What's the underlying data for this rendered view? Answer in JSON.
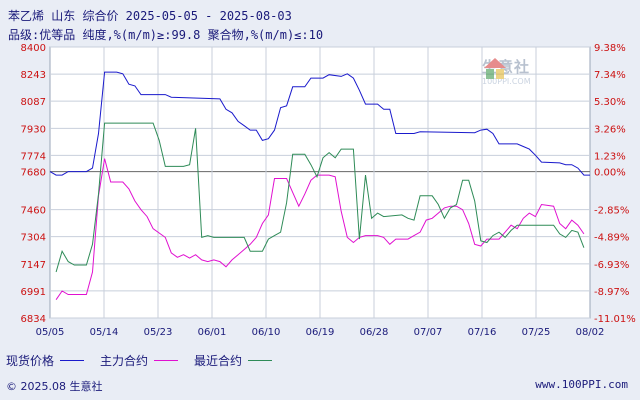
{
  "header": {
    "title": "苯乙烯 山东 综合价 2025-05-05 - 2025-08-03",
    "subtitle": "品级:优等品 纯度,%(m/m)≥:99.8 聚合物,%(m/m)≤:10"
  },
  "watermark": {
    "brand": "生意社",
    "url": "100PPI.COM",
    "colors": [
      "#2f8f3f",
      "#d33030",
      "#e0b020"
    ]
  },
  "legend": {
    "spot": "现货价格",
    "main": "主力合约",
    "nearest": "最近合约"
  },
  "footer": {
    "copyright": "© 2025.08 生意社",
    "site": "www.100PPI.com"
  },
  "colors": {
    "spot": "#1a1acc",
    "main": "#e010d0",
    "nearest": "#2e8b57",
    "zero_line": "#666666"
  },
  "chart_data": {
    "type": "line",
    "ylim": [
      6834,
      8400
    ],
    "left_ticks": [
      "8400",
      "8243",
      "8087",
      "7930",
      "7774",
      "7680",
      "7460",
      "7304",
      "7147",
      "6991",
      "6834"
    ],
    "right_ticks": [
      "9.38%",
      "7.34%",
      "5.30%",
      "3.26%",
      "1.23%",
      "0.00%",
      "-2.85%",
      "-4.89%",
      "-6.93%",
      "-8.97%",
      "-11.01%"
    ],
    "right_tick_values": [
      8400,
      8243,
      8087,
      7930,
      7774,
      7680,
      7460,
      7304,
      7147,
      6991,
      6834
    ],
    "reference_value": 7680,
    "x_tick_labels": [
      "05/05",
      "05/14",
      "05/23",
      "06/01",
      "06/10",
      "06/19",
      "06/28",
      "07/07",
      "07/16",
      "07/25",
      "08/02"
    ],
    "x_days": 89,
    "series": [
      {
        "name": "现货价格",
        "key": "spot",
        "points": [
          [
            0,
            7680
          ],
          [
            1,
            7660
          ],
          [
            2,
            7660
          ],
          [
            3,
            7680
          ],
          [
            6,
            7680
          ],
          [
            7,
            7700
          ],
          [
            8,
            7900
          ],
          [
            9,
            8255
          ],
          [
            11,
            8255
          ],
          [
            12,
            8245
          ],
          [
            13,
            8185
          ],
          [
            14,
            8175
          ],
          [
            15,
            8125
          ],
          [
            19,
            8125
          ],
          [
            20,
            8110
          ],
          [
            28,
            8100
          ],
          [
            29,
            8040
          ],
          [
            30,
            8020
          ],
          [
            31,
            7970
          ],
          [
            32,
            7945
          ],
          [
            33,
            7920
          ],
          [
            34,
            7920
          ],
          [
            35,
            7860
          ],
          [
            36,
            7870
          ],
          [
            37,
            7920
          ],
          [
            38,
            8050
          ],
          [
            39,
            8060
          ],
          [
            40,
            8170
          ],
          [
            42,
            8170
          ],
          [
            43,
            8220
          ],
          [
            45,
            8220
          ],
          [
            46,
            8240
          ],
          [
            48,
            8230
          ],
          [
            49,
            8245
          ],
          [
            50,
            8220
          ],
          [
            51,
            8150
          ],
          [
            52,
            8070
          ],
          [
            54,
            8070
          ],
          [
            55,
            8040
          ],
          [
            56,
            8040
          ],
          [
            57,
            7900
          ],
          [
            60,
            7900
          ],
          [
            61,
            7910
          ],
          [
            70,
            7905
          ],
          [
            71,
            7920
          ],
          [
            72,
            7925
          ],
          [
            73,
            7900
          ],
          [
            74,
            7840
          ],
          [
            77,
            7840
          ],
          [
            78,
            7825
          ],
          [
            79,
            7810
          ],
          [
            80,
            7775
          ],
          [
            81,
            7735
          ],
          [
            84,
            7730
          ],
          [
            85,
            7720
          ],
          [
            86,
            7720
          ],
          [
            87,
            7700
          ],
          [
            88,
            7660
          ],
          [
            89,
            7660
          ]
        ]
      },
      {
        "name": "主力合约",
        "key": "main",
        "points": [
          [
            1,
            6940
          ],
          [
            2,
            6990
          ],
          [
            3,
            6970
          ],
          [
            6,
            6970
          ],
          [
            7,
            7100
          ],
          [
            8,
            7540
          ],
          [
            9,
            7755
          ],
          [
            10,
            7620
          ],
          [
            12,
            7620
          ],
          [
            13,
            7580
          ],
          [
            14,
            7510
          ],
          [
            15,
            7460
          ],
          [
            16,
            7420
          ],
          [
            17,
            7350
          ],
          [
            19,
            7300
          ],
          [
            20,
            7210
          ],
          [
            21,
            7185
          ],
          [
            22,
            7200
          ],
          [
            23,
            7180
          ],
          [
            24,
            7200
          ],
          [
            25,
            7170
          ],
          [
            26,
            7160
          ],
          [
            27,
            7170
          ],
          [
            28,
            7160
          ],
          [
            29,
            7130
          ],
          [
            30,
            7170
          ],
          [
            31,
            7200
          ],
          [
            32,
            7230
          ],
          [
            33,
            7260
          ],
          [
            34,
            7300
          ],
          [
            35,
            7380
          ],
          [
            36,
            7430
          ],
          [
            37,
            7640
          ],
          [
            39,
            7640
          ],
          [
            40,
            7560
          ],
          [
            41,
            7480
          ],
          [
            42,
            7550
          ],
          [
            43,
            7630
          ],
          [
            44,
            7660
          ],
          [
            45,
            7660
          ],
          [
            46,
            7660
          ],
          [
            47,
            7650
          ],
          [
            48,
            7450
          ],
          [
            49,
            7300
          ],
          [
            50,
            7270
          ],
          [
            51,
            7300
          ],
          [
            52,
            7310
          ],
          [
            54,
            7310
          ],
          [
            55,
            7300
          ],
          [
            56,
            7260
          ],
          [
            57,
            7290
          ],
          [
            59,
            7290
          ],
          [
            60,
            7310
          ],
          [
            61,
            7330
          ],
          [
            62,
            7400
          ],
          [
            63,
            7410
          ],
          [
            64,
            7440
          ],
          [
            65,
            7470
          ],
          [
            66,
            7480
          ],
          [
            67,
            7480
          ],
          [
            68,
            7460
          ],
          [
            69,
            7380
          ],
          [
            70,
            7260
          ],
          [
            71,
            7250
          ],
          [
            72,
            7290
          ],
          [
            74,
            7290
          ],
          [
            75,
            7330
          ],
          [
            76,
            7370
          ],
          [
            77,
            7350
          ],
          [
            78,
            7410
          ],
          [
            79,
            7440
          ],
          [
            80,
            7420
          ],
          [
            81,
            7490
          ],
          [
            83,
            7480
          ],
          [
            84,
            7380
          ],
          [
            85,
            7350
          ],
          [
            86,
            7400
          ],
          [
            87,
            7370
          ],
          [
            88,
            7320
          ]
        ]
      },
      {
        "name": "最近合约",
        "key": "nearest",
        "points": [
          [
            1,
            7100
          ],
          [
            2,
            7220
          ],
          [
            3,
            7160
          ],
          [
            4,
            7140
          ],
          [
            6,
            7140
          ],
          [
            7,
            7260
          ],
          [
            8,
            7550
          ],
          [
            9,
            7960
          ],
          [
            17,
            7960
          ],
          [
            18,
            7860
          ],
          [
            19,
            7710
          ],
          [
            22,
            7710
          ],
          [
            23,
            7720
          ],
          [
            24,
            7930
          ],
          [
            25,
            7300
          ],
          [
            26,
            7310
          ],
          [
            27,
            7300
          ],
          [
            32,
            7300
          ],
          [
            33,
            7220
          ],
          [
            35,
            7220
          ],
          [
            36,
            7290
          ],
          [
            37,
            7310
          ],
          [
            38,
            7330
          ],
          [
            39,
            7500
          ],
          [
            40,
            7780
          ],
          [
            42,
            7780
          ],
          [
            43,
            7720
          ],
          [
            44,
            7650
          ],
          [
            45,
            7760
          ],
          [
            46,
            7790
          ],
          [
            47,
            7760
          ],
          [
            48,
            7810
          ],
          [
            50,
            7810
          ],
          [
            51,
            7290
          ],
          [
            52,
            7660
          ],
          [
            53,
            7410
          ],
          [
            54,
            7440
          ],
          [
            55,
            7420
          ],
          [
            58,
            7430
          ],
          [
            59,
            7410
          ],
          [
            60,
            7400
          ],
          [
            61,
            7540
          ],
          [
            63,
            7540
          ],
          [
            64,
            7490
          ],
          [
            65,
            7410
          ],
          [
            66,
            7470
          ],
          [
            67,
            7490
          ],
          [
            68,
            7630
          ],
          [
            69,
            7630
          ],
          [
            70,
            7510
          ],
          [
            71,
            7280
          ],
          [
            72,
            7270
          ],
          [
            73,
            7310
          ],
          [
            74,
            7330
          ],
          [
            75,
            7300
          ],
          [
            76,
            7340
          ],
          [
            77,
            7370
          ],
          [
            83,
            7370
          ],
          [
            84,
            7320
          ],
          [
            85,
            7300
          ],
          [
            86,
            7340
          ],
          [
            87,
            7330
          ],
          [
            88,
            7240
          ]
        ]
      }
    ]
  }
}
